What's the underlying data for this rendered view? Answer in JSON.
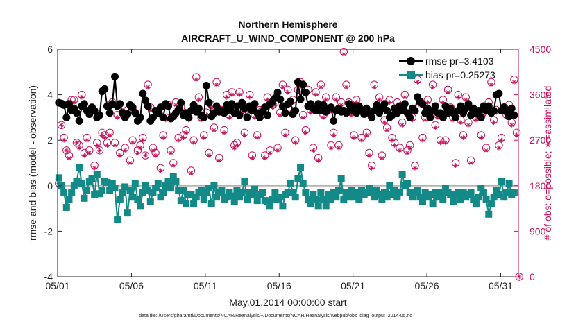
{
  "chart_data": {
    "type": "scatter",
    "title": [
      "Northern Hemisphere",
      "AIRCRAFT_U_WIND_COMPONENT @ 200 hPa"
    ],
    "xlabel": "May.01,2014 00:00:00 start",
    "ylabel": "rmse and bias (model - observation)",
    "ylabel_right": "# of obs: o=possible; ∗=assimilated",
    "footnote": "data file: /Users/gharamti/Documents/NCAR/Reanalysis/~/Documents/NCAR/Reanalysis/webpub/obs_diag_output_2014-05.nc",
    "x_unit": "days since May 01",
    "xlim": [
      0,
      31.2
    ],
    "ylim": [
      -4,
      6
    ],
    "ylim_right": [
      0,
      4500
    ],
    "x_ticks": [
      {
        "value": 0,
        "label": "05/01"
      },
      {
        "value": 5,
        "label": "05/06"
      },
      {
        "value": 10,
        "label": "05/11"
      },
      {
        "value": 15,
        "label": "05/16"
      },
      {
        "value": 20,
        "label": "05/21"
      },
      {
        "value": 25,
        "label": "05/26"
      },
      {
        "value": 30,
        "label": "05/31"
      }
    ],
    "y_ticks_left": [
      -4,
      -2,
      0,
      2,
      4,
      6
    ],
    "y_ticks_right": [
      0,
      900,
      1800,
      2700,
      3600,
      4500
    ],
    "zero_line": true,
    "grid": false,
    "legend_position": "top-right",
    "colors": {
      "rmse": "#000000",
      "bias": "#138a87",
      "obs": "#c80f5a",
      "zero_line": "#b3b3b3"
    },
    "series": [
      {
        "name": "rmse pr=3.4103",
        "axis": "left",
        "marker": "circle",
        "values": [
          3.65,
          3.62,
          3.55,
          3.0,
          3.6,
          3.3,
          3.4,
          3.2,
          2.85,
          3.5,
          3.6,
          3.3,
          3.15,
          3.45,
          3.3,
          3.0,
          3.1,
          4.15,
          4.25,
          3.5,
          3.2,
          3.6,
          4.8,
          3.5,
          3.6,
          3.2,
          3.0,
          3.15,
          3.55,
          3.45,
          3.2,
          2.85,
          3.0,
          4.05,
          3.75,
          3.5,
          2.85,
          3.0,
          3.3,
          3.2,
          3.45,
          3.0,
          3.6,
          3.5,
          2.95,
          3.05,
          3.2,
          3.35,
          3.65,
          3.1,
          3.2,
          3.0,
          3.3,
          3.55,
          3.25,
          3.4,
          3.1,
          3.0,
          4.4,
          3.65,
          3.05,
          3.2,
          3.5,
          3.25,
          3.3,
          3.2,
          3.55,
          3.3,
          3.6,
          3.2,
          3.5,
          3.1,
          3.65,
          3.4,
          3.0,
          3.5,
          3.3,
          3.6,
          3.2,
          3.0,
          3.25,
          3.45,
          3.1,
          3.6,
          3.7,
          3.85,
          4.1,
          3.8,
          3.5,
          3.2,
          3.6,
          3.7,
          3.15,
          3.3,
          4.55,
          3.8,
          4.45,
          4.1,
          3.5,
          3.6,
          3.4,
          3.3,
          3.6,
          3.3,
          3.55,
          3.25,
          3.4,
          3.45,
          2.85,
          3.3,
          3.4,
          3.25,
          3.3,
          3.2,
          3.6,
          3.3,
          3.5,
          3.2,
          3.5,
          3.3,
          3.15,
          3.4,
          3.2,
          3.0,
          3.3,
          3.55,
          3.2,
          3.4,
          3.6,
          3.3,
          3.0,
          3.1,
          3.4,
          3.2,
          3.5,
          3.3,
          3.6,
          3.2,
          3.0,
          3.4,
          3.3,
          3.9,
          3.7,
          3.6,
          3.2,
          3.4,
          3.0,
          3.3,
          3.5,
          3.2,
          3.2,
          3.0,
          3.5,
          3.2,
          3.4,
          3.2,
          3.0,
          3.3,
          3.5,
          3.2,
          3.4,
          3.6,
          3.1,
          3.4,
          3.2,
          3.3,
          3.0,
          3.5,
          3.3,
          3.5,
          3.2,
          3.3,
          4.0,
          4.05,
          3.3,
          3.45,
          3.25,
          3.05,
          3.4,
          3.1
        ]
      },
      {
        "name": "bias pr=0.25273",
        "axis": "left",
        "marker": "square",
        "values": [
          0.35,
          0.0,
          -0.3,
          -0.95,
          -0.6,
          -0.3,
          0.0,
          0.2,
          0.8,
          0.1,
          -0.55,
          -0.2,
          0.2,
          0.3,
          -0.4,
          0.5,
          -0.35,
          -0.2,
          0.2,
          0.15,
          -0.2,
          0.1,
          -0.1,
          -1.5,
          -0.6,
          -0.3,
          -0.05,
          -1.2,
          -0.2,
          -0.5,
          0.1,
          -0.6,
          -0.9,
          -0.3,
          0.0,
          -0.2,
          -0.7,
          -0.3,
          -0.1,
          0.1,
          -0.5,
          -0.3,
          0.0,
          0.2,
          -0.1,
          0.4,
          0.2,
          -0.2,
          -0.65,
          -0.2,
          -0.8,
          -0.4,
          -0.4,
          -0.8,
          -0.5,
          -0.3,
          -0.2,
          -0.6,
          -0.3,
          -0.1,
          -0.8,
          0.0,
          -0.5,
          -0.3,
          -0.2,
          -0.6,
          -0.5,
          -0.3,
          -0.45,
          -0.7,
          -0.2,
          -0.5,
          -0.3,
          0.2,
          -0.6,
          -0.3,
          -0.4,
          -0.15,
          -0.65,
          -0.4,
          -0.3,
          -0.65,
          -0.7,
          -0.9,
          -0.6,
          -0.3,
          -0.6,
          -0.5,
          -0.9,
          -0.4,
          -0.3,
          0.1,
          -0.3,
          -0.5,
          0.3,
          0.8,
          0.1,
          -0.3,
          -0.6,
          -0.8,
          -0.4,
          -0.6,
          -0.9,
          -0.3,
          -0.6,
          -0.9,
          -0.4,
          -0.6,
          -0.3,
          -0.5,
          -0.2,
          0.3,
          -0.6,
          -0.3,
          -0.5,
          -0.2,
          -0.5,
          -0.3,
          -0.6,
          -0.2,
          -0.4,
          -0.3,
          -0.1,
          -0.3,
          -0.5,
          -0.2,
          -0.4,
          -0.6,
          -0.3,
          -0.5,
          0.0,
          -0.4,
          -0.2,
          -0.5,
          -0.3,
          0.5,
          0.0,
          0.1,
          -0.3,
          -0.5,
          -0.3,
          -0.2,
          -0.5,
          -0.7,
          -0.3,
          -0.5,
          -0.4,
          -0.8,
          -0.3,
          -0.5,
          -0.3,
          -0.6,
          -0.1,
          -0.3,
          -0.4,
          -0.7,
          -0.4,
          -0.3,
          -0.6,
          -0.3,
          -0.5,
          -0.4,
          -0.3,
          -0.6,
          -0.8,
          -0.5,
          -0.1,
          -0.3,
          -0.6,
          -1.25,
          -0.8,
          -0.5,
          -0.2,
          -0.4,
          0.2,
          -0.5,
          -0.3,
          0.1,
          -0.4,
          -0.3
        ]
      },
      {
        "name": "possible",
        "axis": "right",
        "marker": "circle-open",
        "values": [
          1850,
          3000,
          2750,
          2500,
          2400,
          3500,
          3500,
          2650,
          2600,
          3600,
          2450,
          2750,
          2500,
          3300,
          2200,
          2650,
          2500,
          2850,
          2800,
          2650,
          2850,
          3450,
          2650,
          3200,
          2450,
          3250,
          2550,
          3300,
          2300,
          2700,
          3250,
          2500,
          2600,
          2750,
          2400,
          3800,
          3350,
          2550,
          2450,
          3250,
          2150,
          2800,
          3150,
          3400,
          2500,
          2250,
          3450,
          2750,
          3350,
          2800,
          2900,
          3150,
          2100,
          2700,
          3950,
          3550,
          3150,
          2800,
          3250,
          2450,
          3400,
          2950,
          3850,
          2350,
          3300,
          2900,
          3600,
          3200,
          3650,
          2600,
          2650,
          3650,
          3300,
          2850,
          3350,
          3600,
          2400,
          3200,
          2800,
          3300,
          3300,
          2400,
          3550,
          2500,
          3400,
          3450,
          2550,
          3250,
          3800,
          2850,
          3700,
          3300,
          3500,
          2700,
          3700,
          3850,
          3200,
          2900,
          3700,
          3300,
          2550,
          3650,
          2350,
          3800,
          3200,
          3550,
          3300,
          2600,
          2850,
          3550,
          2600,
          3450,
          4450,
          3800,
          3450,
          3250,
          2800,
          3500,
          3350,
          2750,
          3300,
          2850,
          2450,
          2200,
          3800,
          3300,
          3550,
          2400,
          3100,
          2950,
          3500,
          2750,
          2650,
          3450,
          2550,
          3050,
          3600,
          2500,
          2600,
          3150,
          2200,
          3900,
          3450,
          2750,
          3150,
          3500,
          3250,
          3800,
          3000,
          3200,
          2700,
          3500,
          2700,
          3700,
          3350,
          3150,
          2250,
          3600,
          3100,
          2800,
          3550,
          3050,
          2300,
          3300,
          3150,
          3200,
          2800,
          3250,
          2550,
          3450,
          3850,
          3100,
          3300,
          2600,
          2750,
          3350,
          3200,
          3400,
          3050,
          3900,
          2850,
          0
        ]
      },
      {
        "name": "assimilated",
        "axis": "right",
        "marker": "asterisk",
        "values": [
          1850,
          3000,
          2700,
          2500,
          2350,
          3450,
          3450,
          2650,
          2550,
          3550,
          2400,
          2700,
          2450,
          3250,
          2150,
          2600,
          2500,
          2800,
          2750,
          2600,
          2800,
          3400,
          2600,
          3150,
          2400,
          3200,
          2500,
          3250,
          2250,
          2650,
          3200,
          2450,
          2550,
          2700,
          2400,
          3750,
          3300,
          2500,
          2400,
          3200,
          2100,
          2750,
          3100,
          3350,
          2450,
          2200,
          3400,
          2700,
          3300,
          2750,
          2850,
          3100,
          2050,
          2650,
          3900,
          3500,
          3100,
          2750,
          3200,
          2400,
          3350,
          2900,
          3800,
          2300,
          3250,
          2850,
          3550,
          3150,
          3600,
          2550,
          2600,
          3600,
          3250,
          2800,
          3300,
          3550,
          2350,
          3150,
          2750,
          3250,
          3250,
          2350,
          3500,
          2450,
          3350,
          3400,
          2500,
          3200,
          3750,
          2800,
          3650,
          3250,
          3450,
          2650,
          3650,
          3800,
          3150,
          2850,
          3650,
          3250,
          2500,
          3600,
          2300,
          3750,
          3150,
          3500,
          3250,
          2550,
          2800,
          3500,
          2550,
          3400,
          4400,
          3750,
          3400,
          3200,
          2750,
          3450,
          3300,
          2700,
          3250,
          2800,
          2400,
          2150,
          3750,
          3250,
          3500,
          2350,
          3050,
          2900,
          3450,
          2700,
          2600,
          3400,
          2500,
          3000,
          3550,
          2450,
          2550,
          3100,
          2150,
          3850,
          3400,
          2700,
          3100,
          3450,
          3200,
          3750,
          2950,
          3150,
          2650,
          3450,
          2650,
          3650,
          3300,
          3100,
          2200,
          3550,
          3050,
          2750,
          3500,
          3000,
          2250,
          3250,
          3100,
          3150,
          2750,
          3200,
          2500,
          3400,
          3800,
          3050,
          3250,
          2550,
          2700,
          3300,
          3150,
          3350,
          3000,
          3850,
          2800,
          0
        ]
      }
    ]
  }
}
